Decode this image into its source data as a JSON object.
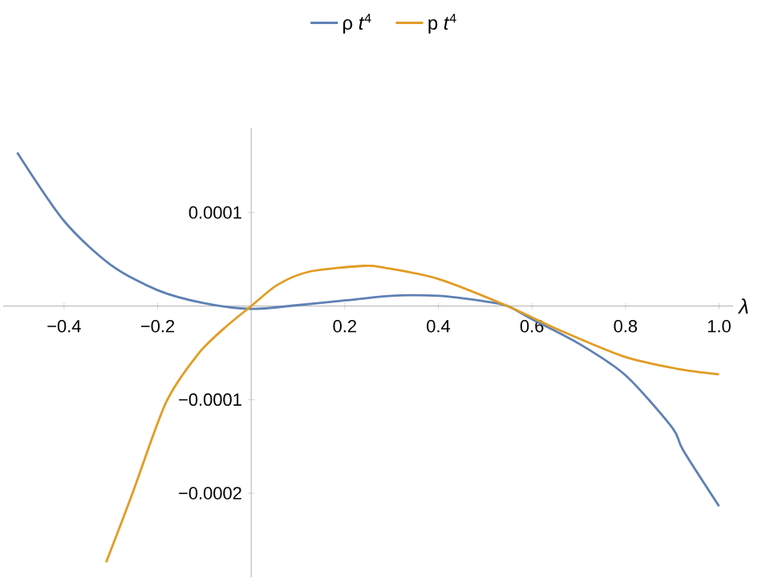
{
  "chart_data": {
    "type": "line",
    "xlabel": "λ",
    "xlim": [
      -0.53,
      1.03
    ],
    "ylim": [
      -0.00029,
      0.00019
    ],
    "xticks": [
      {
        "value": -0.4,
        "label": "−0.4"
      },
      {
        "value": -0.2,
        "label": "−0.2"
      },
      0.2,
      0.4,
      0.6,
      0.8,
      {
        "value": 1,
        "label": "1.0"
      }
    ],
    "yticks": [
      {
        "value": -0.0002,
        "label": "−0.0002"
      },
      {
        "value": -0.0001,
        "label": "−0.0001"
      },
      0.0001
    ],
    "legend": "top",
    "series": [
      {
        "name": "ρ *t*$^{4}$",
        "color": "#5e81b5",
        "x": [
          -0.5,
          -0.4,
          -0.3,
          -0.2,
          -0.1,
          0,
          0.1,
          0.2,
          0.3,
          0.4,
          0.5,
          0.548,
          0.6,
          0.7,
          0.8,
          0.9,
          0.923,
          1.0
        ],
        "values": [
          0.000164,
          9.1e-05,
          4.4e-05,
          1.7e-05,
          3e-06,
          -3e-06,
          1e-06,
          6e-06,
          1.1e-05,
          1.1e-05,
          5e-06,
          0,
          -1.4e-05,
          -4e-05,
          -7.4e-05,
          -0.00013,
          -0.000154,
          -0.000214
        ]
      },
      {
        "name": "p *t*$^{4}$",
        "color": "#e19c24",
        "x": [
          -0.31,
          -0.255,
          -0.182,
          -0.113,
          -0.056,
          0,
          0.057,
          0.126,
          0.24,
          0.285,
          0.4,
          0.548,
          0.66,
          0.797,
          0.91,
          1.0
        ],
        "values": [
          -0.000274,
          -0.000202,
          -0.000103,
          -5.1e-05,
          -2.3e-05,
          0,
          2.3e-05,
          3.7e-05,
          4.3e-05,
          4.1e-05,
          2.9e-05,
          0,
          -2.6e-05,
          -5.4e-05,
          -6.7e-05,
          -7.3e-05
        ]
      }
    ]
  }
}
